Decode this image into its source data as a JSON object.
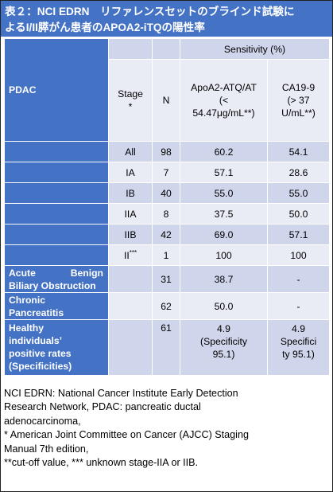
{
  "title": {
    "line1": "表２：NCI EDRN　リファレンスセットのブラインド試験に",
    "line2": "よるI/II膵がん患者のAPOA2-iTQの陽性率"
  },
  "table": {
    "sensitivity_header": "Sensitivity (%)",
    "pdac_label": "PDAC",
    "stage_header": "Stage",
    "stage_header_mark": "*",
    "n_header": "N",
    "apoa2_header": [
      "ApoA2-ATQ/AT",
      "(<",
      "54.47μg/mL**)"
    ],
    "ca199_header": [
      "CA19-9",
      "(> 37",
      "U/mL**)"
    ],
    "stage_rows": [
      {
        "stage": "All",
        "n": "98",
        "apoa2": "60.2",
        "ca199": "54.1"
      },
      {
        "stage": "IA",
        "n": "7",
        "apoa2": "57.1",
        "ca199": "28.6"
      },
      {
        "stage": "IB",
        "n": "40",
        "apoa2": "55.0",
        "ca199": "55.0"
      },
      {
        "stage": "IIA",
        "n": "8",
        "apoa2": "37.5",
        "ca199": "50.0"
      },
      {
        "stage": "IIB",
        "n": "42",
        "apoa2": "69.0",
        "ca199": "57.1"
      },
      {
        "stage": "II",
        "stage_sup": "***",
        "n": "1",
        "apoa2": "100",
        "ca199": "100"
      }
    ],
    "benign": {
      "label_line1_a": "Acute",
      "label_line1_b": "Benign",
      "label_line2": "Biliary Obstruction",
      "n": "31",
      "apoa2": "38.7",
      "ca199": "-"
    },
    "chronic": {
      "label_line1": "Chronic",
      "label_line2": "Pancreatitis",
      "n": "62",
      "apoa2": "50.0",
      "ca199": "-"
    },
    "healthy": {
      "label": [
        "Healthy",
        "individuals’",
        "positive rates",
        "(Specificities)"
      ],
      "n": "61",
      "apoa2": [
        "4.9",
        "(Specificity",
        "95.1)"
      ],
      "ca199": [
        "4.9",
        "Specifici",
        "ty 95.1)"
      ]
    }
  },
  "footnotes": [
    "NCI EDRN: National Cancer Institute Early Detection",
    "Research Network, PDAC: pancreatic ductal",
    "adenocarcinoma,",
    "* American Joint Committee on Cancer (AJCC) Staging",
    "Manual 7th edition,",
    "**cut-off value, *** unknown  stage-IIA or IIB."
  ]
}
